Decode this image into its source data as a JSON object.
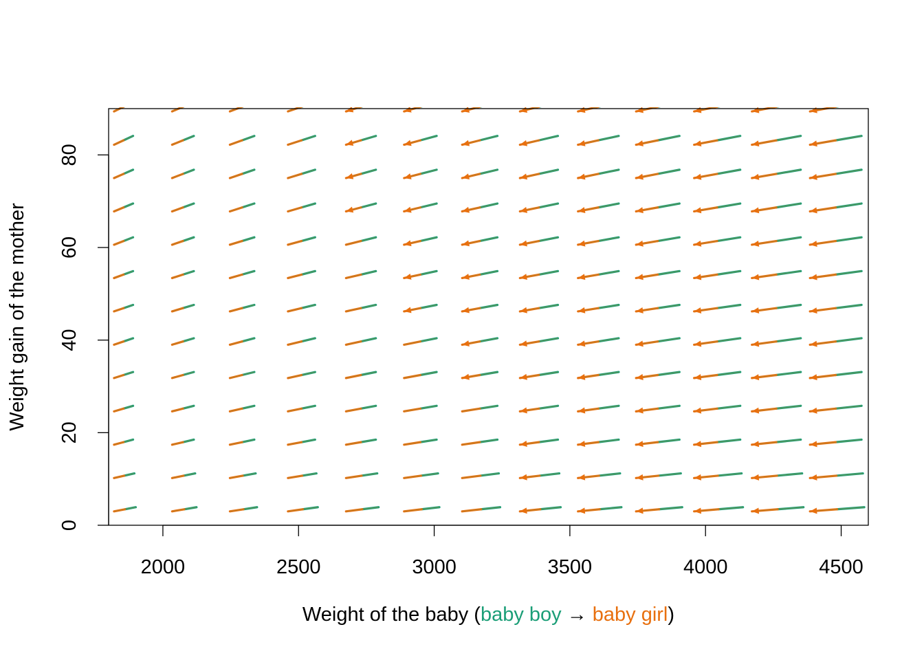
{
  "chart_data": {
    "type": "vector_field",
    "xlabel": {
      "prefix": "Weight of the baby (",
      "from_label": "baby boy",
      "arrow": " → ",
      "to_label": "baby girl",
      "suffix": ")"
    },
    "ylabel": "Weight gain of the mother",
    "xlim": [
      1800,
      4600
    ],
    "ylim": [
      0,
      90
    ],
    "xticks": [
      2000,
      2500,
      3000,
      3500,
      4000,
      4500
    ],
    "yticks": [
      0,
      20,
      40,
      60,
      80
    ],
    "colors": {
      "baby_boy": "#1b9e77",
      "baby_girl": "#e8700f",
      "blend": "#9a8a3a"
    },
    "grid": {
      "x": [
        1820,
        2034,
        2247,
        2461,
        2675,
        2889,
        3103,
        3316,
        3530,
        3744,
        3958,
        4171,
        4385
      ],
      "y": [
        3,
        10.2,
        17.4,
        24.6,
        31.8,
        39,
        46.2,
        53.4,
        60.6,
        67.8,
        75,
        82.2,
        89.4
      ]
    },
    "shift_per_unit_note": "arrows point from boy prediction to girl prediction",
    "arrows_by_row": [
      {
        "y": 3,
        "start_dx": [
          80,
          90,
          100,
          110,
          120,
          130,
          140,
          150,
          160,
          170,
          180,
          190,
          200
        ],
        "dy": 0.9,
        "head_from_col": 7
      },
      {
        "y": 10.2,
        "start_dx": [
          75,
          85,
          95,
          105,
          115,
          125,
          135,
          145,
          155,
          165,
          175,
          185,
          195
        ],
        "dy": 1.0,
        "head_from_col": 7
      },
      {
        "y": 17.4,
        "start_dx": [
          70,
          80,
          90,
          100,
          110,
          120,
          130,
          140,
          150,
          160,
          170,
          180,
          190
        ],
        "dy": 1.1,
        "head_from_col": 7
      },
      {
        "y": 24.6,
        "start_dx": [
          70,
          80,
          90,
          100,
          110,
          120,
          130,
          140,
          150,
          160,
          170,
          180,
          190
        ],
        "dy": 1.2,
        "head_from_col": 7
      },
      {
        "y": 31.8,
        "start_dx": [
          70,
          80,
          90,
          100,
          110,
          120,
          130,
          140,
          150,
          160,
          170,
          180,
          190
        ],
        "dy": 1.3,
        "head_from_col": 6
      },
      {
        "y": 39,
        "start_dx": [
          70,
          80,
          90,
          100,
          110,
          120,
          130,
          140,
          150,
          160,
          170,
          180,
          190
        ],
        "dy": 1.4,
        "head_from_col": 6
      },
      {
        "y": 46.2,
        "start_dx": [
          70,
          80,
          90,
          100,
          110,
          120,
          130,
          140,
          150,
          160,
          170,
          180,
          190
        ],
        "dy": 1.4,
        "head_from_col": 5
      },
      {
        "y": 53.4,
        "start_dx": [
          70,
          80,
          90,
          100,
          110,
          120,
          130,
          140,
          150,
          160,
          170,
          180,
          190
        ],
        "dy": 1.5,
        "head_from_col": 5
      },
      {
        "y": 60.6,
        "start_dx": [
          70,
          80,
          90,
          100,
          110,
          120,
          130,
          140,
          150,
          160,
          170,
          180,
          190
        ],
        "dy": 1.6,
        "head_from_col": 5
      },
      {
        "y": 67.8,
        "start_dx": [
          70,
          80,
          90,
          100,
          110,
          120,
          130,
          140,
          150,
          160,
          170,
          180,
          190
        ],
        "dy": 1.7,
        "head_from_col": 4
      },
      {
        "y": 75,
        "start_dx": [
          70,
          80,
          90,
          100,
          110,
          120,
          130,
          140,
          150,
          160,
          170,
          180,
          190
        ],
        "dy": 1.8,
        "head_from_col": 4
      },
      {
        "y": 82.2,
        "start_dx": [
          70,
          80,
          90,
          100,
          110,
          120,
          130,
          140,
          150,
          160,
          170,
          180,
          190
        ],
        "dy": 1.9,
        "head_from_col": 4
      },
      {
        "y": 89.4,
        "start_dx": [
          70,
          80,
          90,
          100,
          110,
          120,
          130,
          140,
          150,
          160,
          170,
          180,
          190
        ],
        "dy": 2.0,
        "head_from_col": 4
      }
    ]
  }
}
